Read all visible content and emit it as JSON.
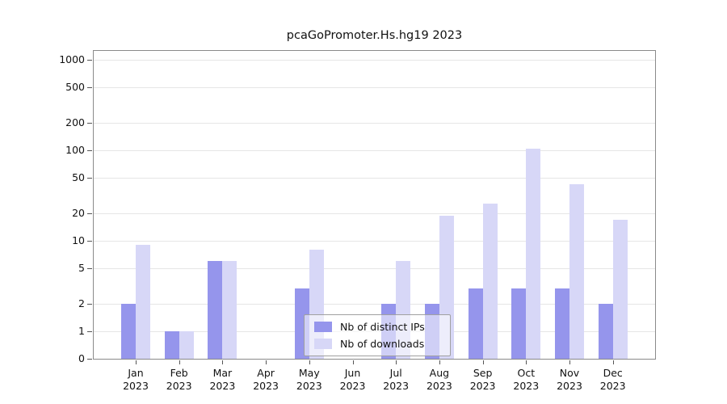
{
  "chart_data": {
    "type": "bar",
    "title": "pcaGoPromoter.Hs.hg19 2023",
    "categories": [
      "Jan 2023",
      "Feb 2023",
      "Mar 2023",
      "Apr 2023",
      "May 2023",
      "Jun 2023",
      "Jul 2023",
      "Aug 2023",
      "Sep 2023",
      "Oct 2023",
      "Nov 2023",
      "Dec 2023"
    ],
    "series": [
      {
        "name": "Nb of distinct IPs",
        "color": "#9595ec",
        "values": [
          2,
          1,
          6,
          0,
          3,
          0,
          2,
          2,
          3,
          3,
          3,
          2
        ]
      },
      {
        "name": "Nb of downloads",
        "color": "#d7d7f7",
        "values": [
          9,
          1,
          6,
          0,
          8,
          0,
          6,
          19,
          26,
          105,
          42,
          17
        ]
      }
    ],
    "xlabel": "",
    "ylabel": "",
    "yscale": "log",
    "yticks": [
      0,
      1,
      2,
      5,
      10,
      20,
      50,
      100,
      200,
      500,
      1000
    ],
    "ylim": [
      0,
      1000
    ],
    "grid": true,
    "legend_position": "bottom-center"
  },
  "colors": {
    "grid": "#e6e6e6",
    "axis": "#8a8a8a",
    "tick": "#555555",
    "tick_text": "#111111",
    "background": "#ffffff"
  }
}
